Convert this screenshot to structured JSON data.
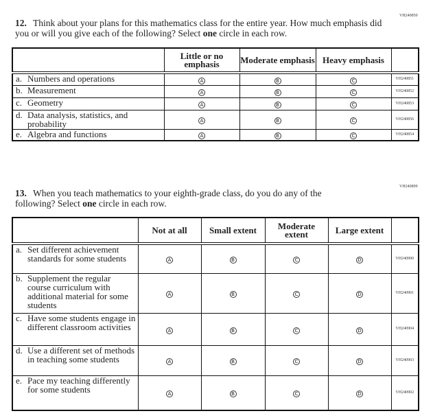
{
  "q12": {
    "code": "VH240850",
    "number": "12.",
    "text_before": "Think about your plans for this mathematics class for the entire year. How much emphasis did you or will you give each of the following? Select ",
    "text_bold": "one",
    "text_after": " circle in each row.",
    "columns": [
      "Little or no emphasis",
      "Moderate emphasis",
      "Heavy emphasis"
    ],
    "option_letters": [
      "A",
      "B",
      "C"
    ],
    "rows": [
      {
        "label": "a.",
        "text": "Numbers and operations",
        "code": "VH240851"
      },
      {
        "label": "b.",
        "text": "Measurement",
        "code": "VH240852"
      },
      {
        "label": "c.",
        "text": "Geometry",
        "code": "VH240853"
      },
      {
        "label": "d.",
        "text": "Data analysis, statistics, and probability",
        "code": "VH240856"
      },
      {
        "label": "e.",
        "text": "Algebra and functions",
        "code": "VH240854"
      }
    ]
  },
  "q13": {
    "code": "VH240899",
    "number": "13.",
    "text_before": "When you teach mathematics to your eighth-grade class, do you do any of the following? Select ",
    "text_bold": "one",
    "text_after": " circle in each row.",
    "columns": [
      "Not at all",
      "Small extent",
      "Moderate extent",
      "Large extent"
    ],
    "option_letters": [
      "A",
      "B",
      "C",
      "D"
    ],
    "rows": [
      {
        "label": "a.",
        "text": "Set different achievement standards for some students",
        "code": "VH240900"
      },
      {
        "label": "b.",
        "text": "Supplement the regular course curriculum with additional material for some students",
        "code": "VH240901"
      },
      {
        "label": "c.",
        "text": "Have some students engage in different classroom activities",
        "code": "VH240904"
      },
      {
        "label": "d.",
        "text": "Use a different set of methods in teaching some students",
        "code": "VH240903"
      },
      {
        "label": "e.",
        "text": "Pace my teaching differently for some students",
        "code": "VH240902"
      }
    ]
  }
}
